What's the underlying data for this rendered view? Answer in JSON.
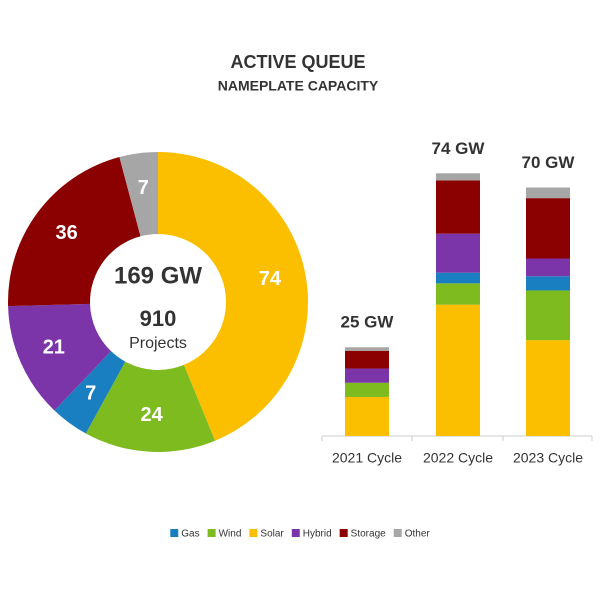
{
  "title": "ACTIVE QUEUE",
  "subtitle": "NAMEPLATE CAPACITY",
  "chart_data": [
    {
      "type": "pie",
      "donut": true,
      "center_value": "169 GW",
      "center_count": "910",
      "center_label": "Projects",
      "values": [
        74,
        24,
        7,
        21,
        36,
        7
      ],
      "colors": [
        "#fbbf00",
        "#7dbb1f",
        "#1a7fc1",
        "#7b35a8",
        "#8b0000",
        "#a6a6a6"
      ]
    },
    {
      "type": "bar",
      "stacked": true,
      "categories": [
        "2021 Cycle",
        "2022 Cycle",
        "2023 Cycle"
      ],
      "total_labels": [
        "25 GW",
        "74 GW",
        "70 GW"
      ],
      "series": [
        {
          "name": "Gas",
          "color": "#1a7fc1",
          "values": [
            0,
            3,
            4
          ]
        },
        {
          "name": "Wind",
          "color": "#7dbb1f",
          "values": [
            4,
            6,
            14
          ]
        },
        {
          "name": "Solar",
          "color": "#fbbf00",
          "values": [
            11,
            37,
            27
          ]
        },
        {
          "name": "Hybrid",
          "color": "#7b35a8",
          "values": [
            4,
            11,
            5
          ]
        },
        {
          "name": "Storage",
          "color": "#8b0000",
          "values": [
            5,
            15,
            17
          ]
        },
        {
          "name": "Other",
          "color": "#a6a6a6",
          "values": [
            1,
            2,
            3
          ]
        }
      ]
    }
  ]
}
